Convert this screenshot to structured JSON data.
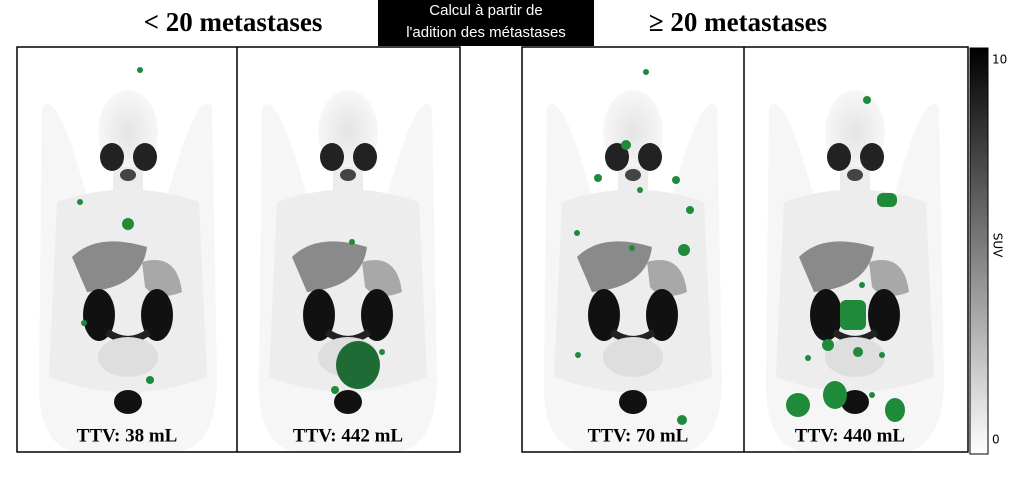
{
  "headers": {
    "left": "< 20 metastases",
    "right": "≥ 20 metastases",
    "caption": [
      "Calcul à partir de",
      "l'adition des métastases"
    ]
  },
  "panels": [
    {
      "label": "TTV: 38 mL"
    },
    {
      "label": "TTV: 442 mL"
    },
    {
      "label": "TTV: 70 mL"
    },
    {
      "label": "TTV: 440 mL"
    }
  ],
  "colorbar": {
    "label": "SUV",
    "max": "10",
    "min": "0"
  }
}
